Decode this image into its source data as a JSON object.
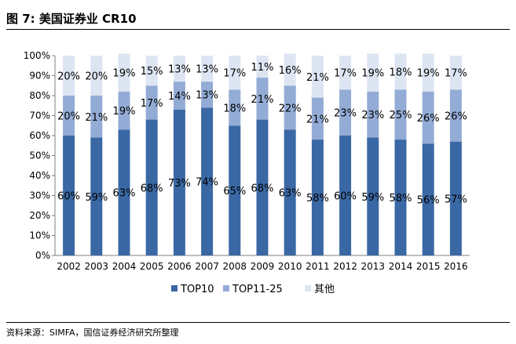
{
  "header": {
    "title": "图 7:  美国证券业 CR10"
  },
  "footer": {
    "source": "资料来源：SIMFA，国信证券经济研究所整理"
  },
  "colors": {
    "top10": "#3a68a4",
    "top11_25": "#93acd6",
    "other": "#dde5f3"
  },
  "chart_data": {
    "type": "bar",
    "stacked": true,
    "title": "美国证券业 CR10",
    "xlabel": "",
    "ylabel": "",
    "ylim": [
      0,
      100
    ],
    "y_ticks": [
      "0%",
      "10%",
      "20%",
      "30%",
      "40%",
      "50%",
      "60%",
      "70%",
      "80%",
      "90%",
      "100%"
    ],
    "categories": [
      "2002",
      "2003",
      "2004",
      "2005",
      "2006",
      "2007",
      "2008",
      "2009",
      "2010",
      "2011",
      "2012",
      "2013",
      "2014",
      "2015",
      "2016"
    ],
    "legend_position": "bottom",
    "series": [
      {
        "name": "TOP10",
        "values": [
          60,
          59,
          63,
          68,
          73,
          74,
          65,
          68,
          63,
          58,
          60,
          59,
          58,
          56,
          57
        ]
      },
      {
        "name": "TOP11-25",
        "values": [
          20,
          21,
          19,
          17,
          14,
          13,
          18,
          21,
          22,
          21,
          23,
          23,
          25,
          26,
          26
        ]
      },
      {
        "name": "其他",
        "values": [
          20,
          20,
          19,
          15,
          13,
          13,
          17,
          11,
          16,
          21,
          17,
          19,
          18,
          19,
          17
        ]
      }
    ]
  }
}
